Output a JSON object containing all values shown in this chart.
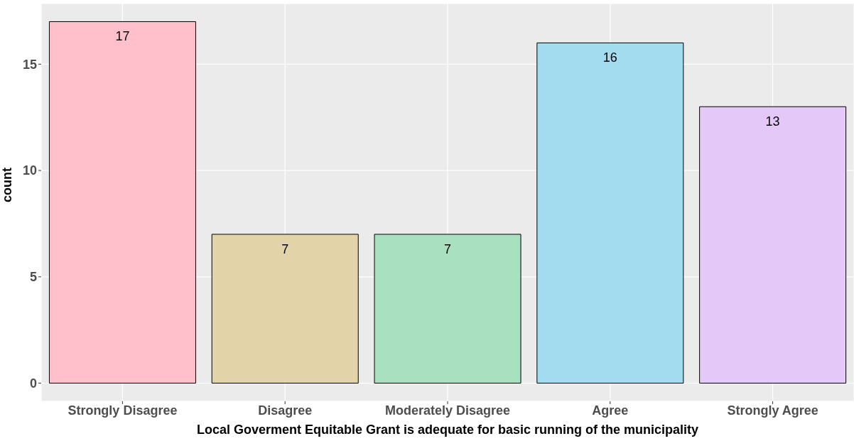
{
  "chart_data": {
    "type": "bar",
    "xlabel": "Local Goverment Equitable Grant is adequate for basic running of the municipality",
    "ylabel": "count",
    "categories": [
      "Strongly Disagree",
      "Disagree",
      "Moderately Disagree",
      "Agree",
      "Strongly Agree"
    ],
    "values": [
      17,
      7,
      7,
      16,
      13
    ],
    "colors": [
      "#ffc0cb",
      "#e2d3a8",
      "#a8e0c0",
      "#a3dcef",
      "#e4c9f8"
    ],
    "ylim": [
      -0.85,
      17.85
    ],
    "yticks": [
      0,
      5,
      10,
      15
    ],
    "grid": true,
    "data_labels": true
  }
}
